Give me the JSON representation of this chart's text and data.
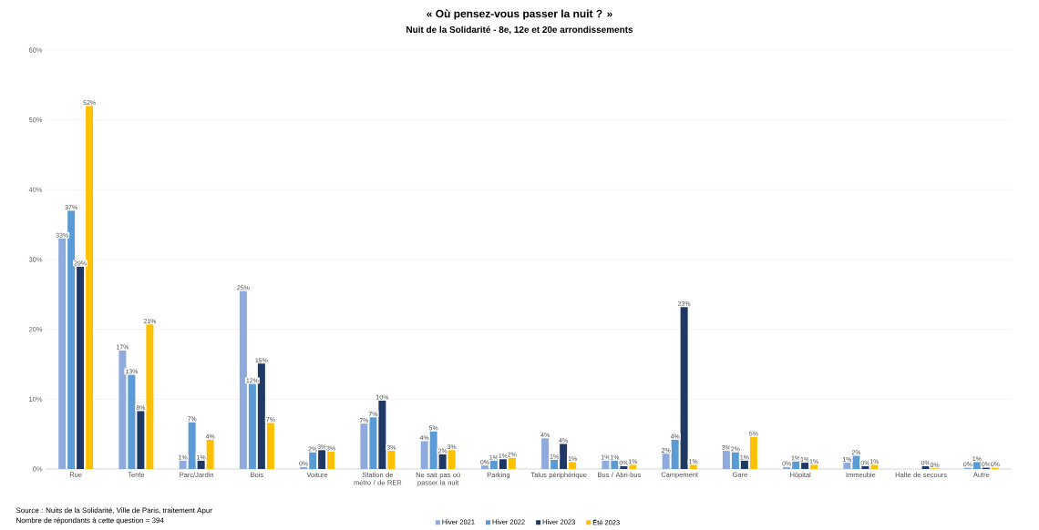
{
  "chart_data": {
    "type": "bar",
    "title": "« Où pensez-vous passer la nuit ? »",
    "subtitle": "Nuit de la Solidarité - 8e, 12e et 20e arrondissements",
    "categories": [
      "Rue",
      "Tente",
      "Parc/Jardin",
      "Bois",
      "Voiture",
      "Station de métro / de RER",
      "Ne sait pas où passer la nuit",
      "Parking",
      "Talus périphérique",
      "Bus / Abri-bus",
      "Campement",
      "Gare",
      "Hôpital",
      "Immeuble",
      "Halte de secours",
      "Autre"
    ],
    "series": [
      {
        "name": "Hiver 2021",
        "color": "#8faadc",
        "values": [
          33,
          17,
          1.2,
          25.5,
          0.3,
          6.5,
          4,
          0.5,
          4.4,
          1.2,
          2.2,
          2.6,
          0.3,
          0.9,
          null,
          0.2
        ],
        "value_labels": [
          "33%",
          "17%",
          "1%",
          "25%",
          "0%",
          "7%",
          "4%",
          "0%",
          "4%",
          "1%",
          "2%",
          "3%",
          "0%",
          "1%",
          null,
          "0%"
        ]
      },
      {
        "name": "Hiver 2022",
        "color": "#5b9bd5",
        "values": [
          37,
          13.5,
          6.7,
          12.2,
          2.4,
          7.4,
          5.4,
          1.2,
          1.3,
          1.2,
          4.2,
          2.4,
          1.1,
          1.9,
          null,
          1
        ],
        "value_labels": [
          "37%",
          "13%",
          "7%",
          "12%",
          "2%",
          "7%",
          "5%",
          "1%",
          "1%",
          "1%",
          "4%",
          "2%",
          "1%",
          "2%",
          null,
          "1%"
        ]
      },
      {
        "name": "Hiver 2023",
        "color": "#1f3864",
        "values": [
          29,
          8.3,
          1.2,
          15.1,
          2.7,
          9.8,
          2.1,
          1.4,
          3.6,
          0.4,
          23.2,
          1.2,
          0.9,
          0.4,
          0.4,
          0.2
        ],
        "value_labels": [
          "29%",
          "8%",
          "1%",
          "15%",
          "3%",
          "10%",
          "2%",
          "1%",
          "4%",
          "0%",
          "23%",
          "1%",
          "1%",
          "0%",
          "0%",
          "0%"
        ]
      },
      {
        "name": "Été 2023",
        "color": "#ffc000",
        "values": [
          52,
          20.7,
          4.2,
          6.6,
          2.5,
          2.6,
          2.7,
          1.6,
          1,
          0.6,
          0.6,
          4.6,
          0.6,
          0.6,
          0.1,
          0.2
        ],
        "value_labels": [
          "52%",
          "21%",
          "4%",
          "7%",
          "3%",
          "3%",
          "3%",
          "2%",
          "1%",
          "1%",
          "1%",
          "5%",
          "1%",
          "1%",
          "0%",
          "0%"
        ]
      }
    ],
    "ylim": [
      0,
      60
    ],
    "yticks": [
      {
        "value": 0,
        "label": "0%"
      },
      {
        "value": 10,
        "label": "10%"
      },
      {
        "value": 20,
        "label": "20%"
      },
      {
        "value": 30,
        "label": "30%"
      },
      {
        "value": 40,
        "label": "40%"
      },
      {
        "value": 50,
        "label": "50%"
      },
      {
        "value": 60,
        "label": "60%"
      }
    ],
    "grid": "y",
    "legend": "bottom",
    "annotations": [
      "Source : Nuits de la Solidarité, Ville de Paris, traitement Apur",
      "Nombre de répondants à cette question = 394"
    ]
  }
}
